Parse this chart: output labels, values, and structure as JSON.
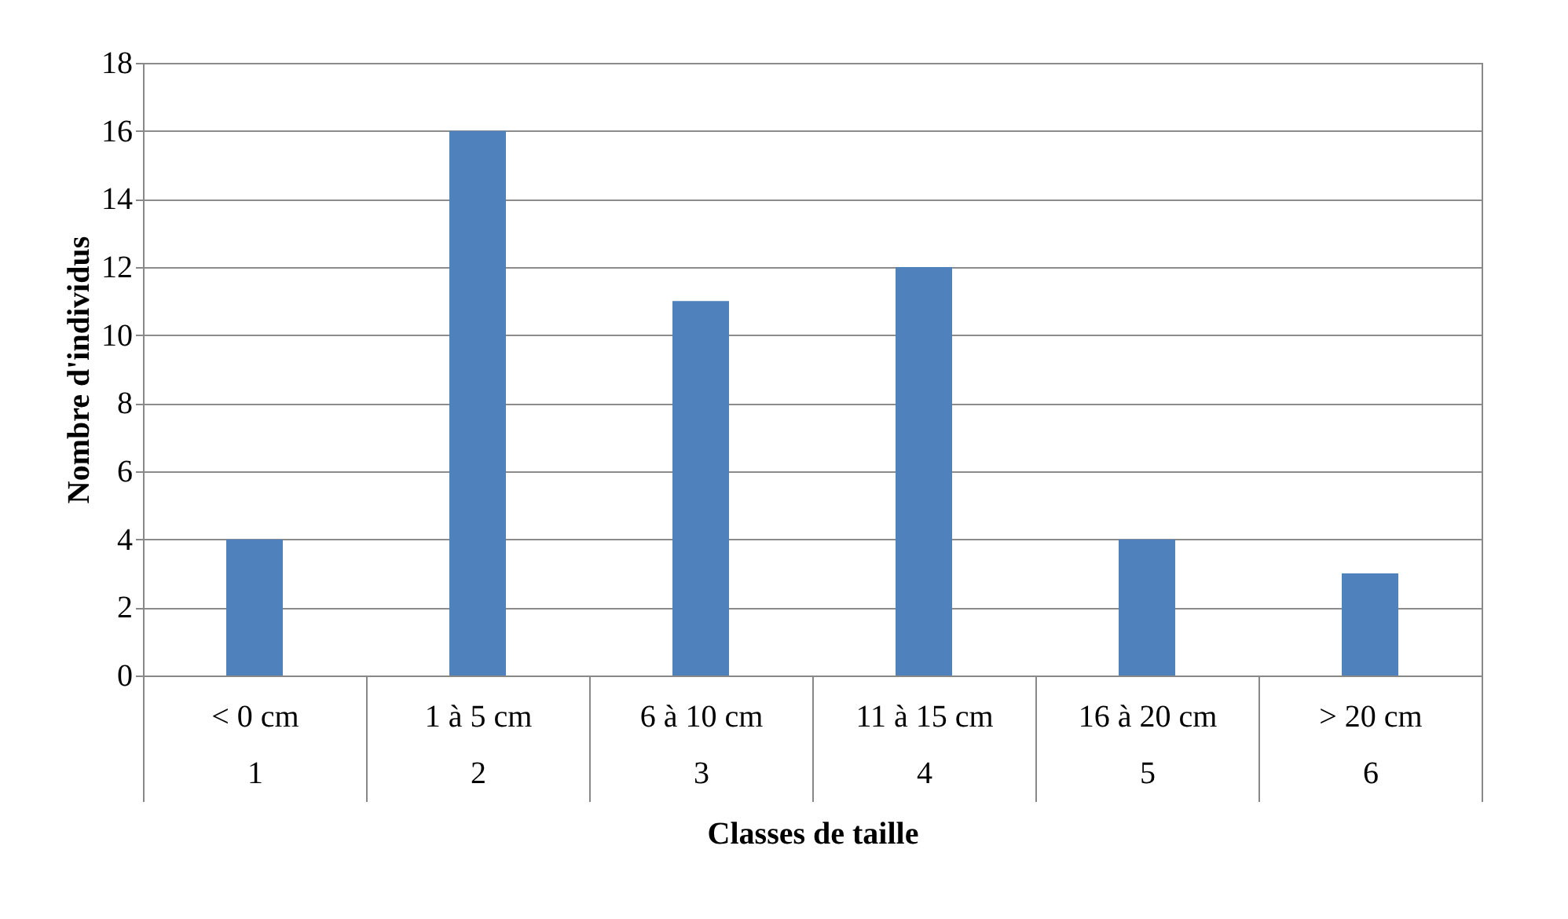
{
  "chart_data": {
    "type": "bar",
    "xlabel": "Classes de taille",
    "ylabel": "Nombre d'individus",
    "categories": [
      "< 0 cm\n1",
      "1 à 5 cm\n2",
      "6 à 10 cm\n3",
      "11 à 15 cm\n4",
      "16 à 20 cm\n5",
      "> 20 cm\n6"
    ],
    "values": [
      4,
      16,
      11,
      12,
      4,
      3
    ],
    "color": "#4f81bd",
    "ylim": [
      0,
      18
    ],
    "yticks": [
      0,
      2,
      4,
      6,
      8,
      10,
      12,
      14,
      16,
      18
    ],
    "grid": "y"
  }
}
